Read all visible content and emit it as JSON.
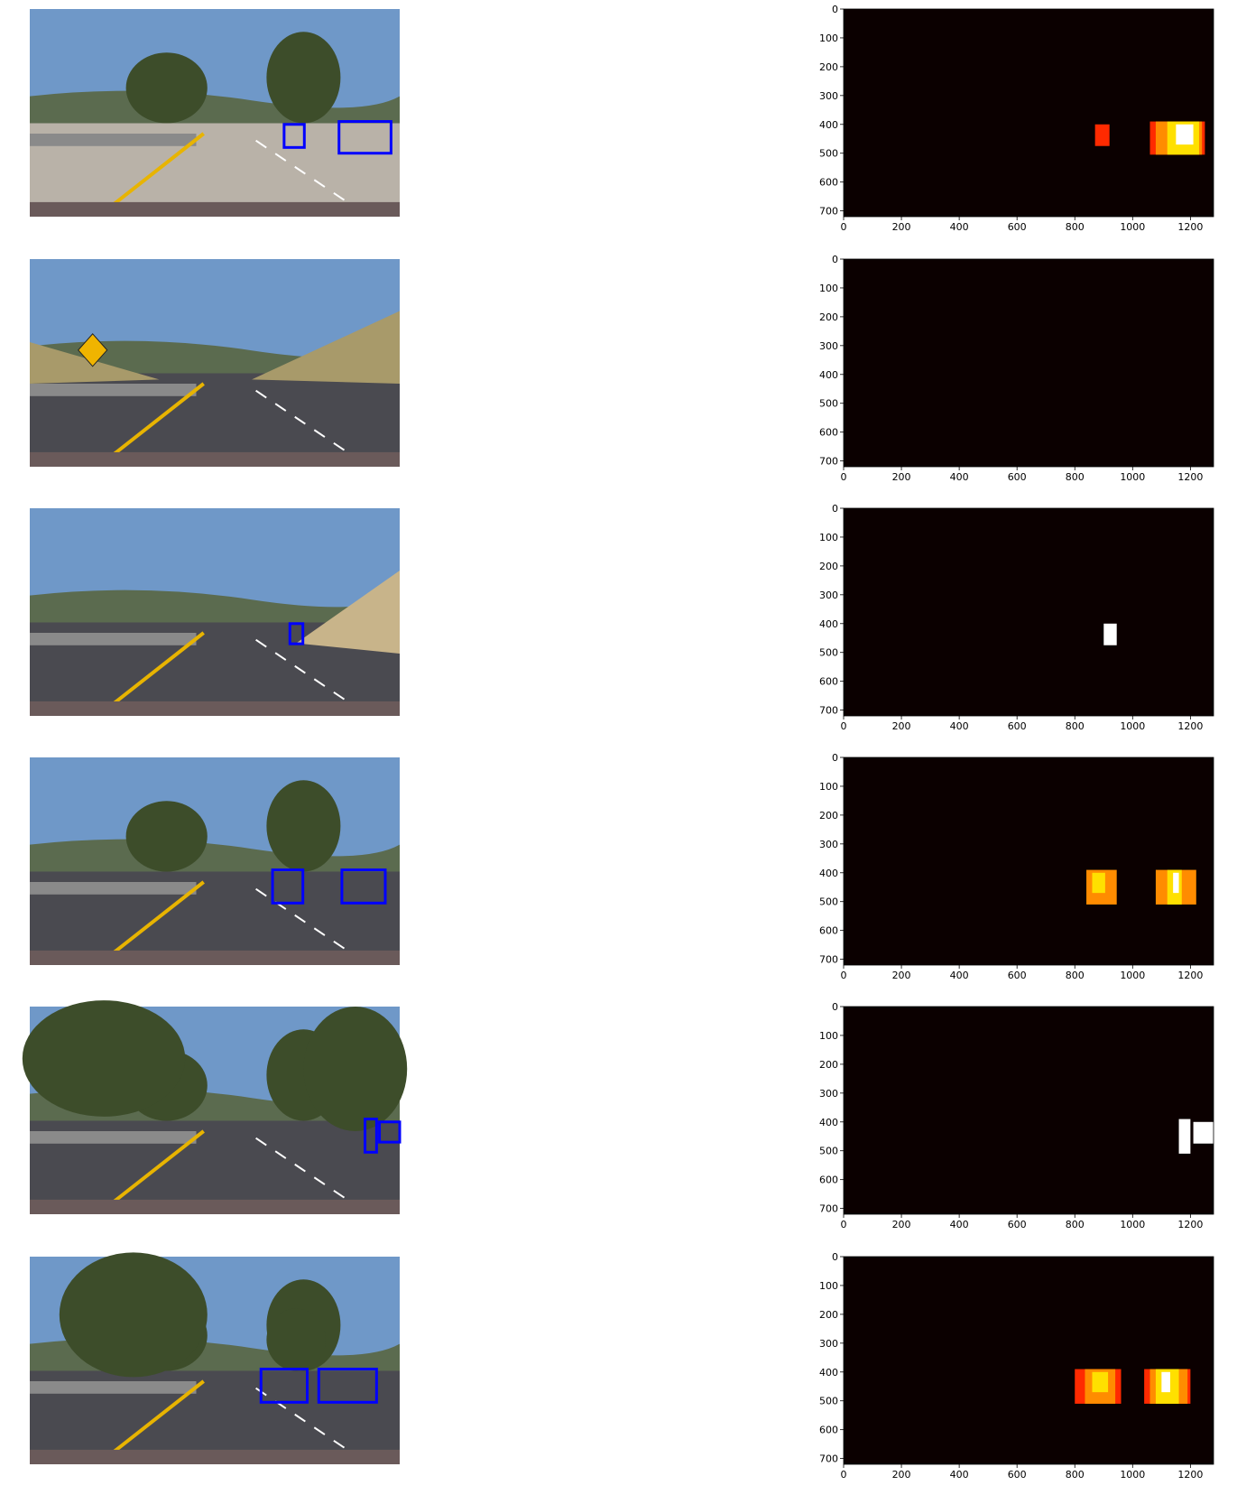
{
  "colors": {
    "heat_background": "#0b0000",
    "heat_low": "#ff2a00",
    "heat_mid": "#ff8c00",
    "heat_high": "#ffe000",
    "heat_max": "#ffffff",
    "box_color": "#0000ff",
    "sky": "#6f98c8",
    "road": "#4a4a50",
    "trees": "#3d4d2a",
    "lane_yellow": "#e8b400"
  },
  "chart_data": {
    "type": "heatmap",
    "rows": [
      {
        "scene": "road with two cars, trees",
        "boxes": [
          {
            "x0": 880,
            "x1": 950,
            "y0": 400,
            "y1": 480
          },
          {
            "x0": 1070,
            "x1": 1250,
            "y0": 390,
            "y1": 500
          }
        ],
        "heatmap": {
          "xlim": [
            0,
            1280
          ],
          "ylim": [
            720,
            0
          ],
          "xticks": [
            0,
            200,
            400,
            600,
            800,
            1000,
            1200
          ],
          "yticks": [
            0,
            100,
            200,
            300,
            400,
            500,
            600,
            700
          ],
          "cells": [
            {
              "x0": 870,
              "x1": 920,
              "y0": 400,
              "y1": 475,
              "level": 1
            },
            {
              "x0": 1060,
              "x1": 1250,
              "y0": 390,
              "y1": 505,
              "level": 1
            },
            {
              "x0": 1080,
              "x1": 1240,
              "y0": 390,
              "y1": 505,
              "level": 2
            },
            {
              "x0": 1120,
              "x1": 1230,
              "y0": 390,
              "y1": 505,
              "level": 3
            },
            {
              "x0": 1150,
              "x1": 1210,
              "y0": 400,
              "y1": 470,
              "level": 4
            }
          ]
        }
      },
      {
        "scene": "empty road, deer crossing sign",
        "boxes": [],
        "heatmap": {
          "xlim": [
            0,
            1280
          ],
          "ylim": [
            720,
            0
          ],
          "xticks": [
            0,
            200,
            400,
            600,
            800,
            1000,
            1200
          ],
          "yticks": [
            0,
            100,
            200,
            300,
            400,
            500,
            600,
            700
          ],
          "cells": []
        }
      },
      {
        "scene": "road with distant car, hill",
        "boxes": [
          {
            "x0": 900,
            "x1": 945,
            "y0": 400,
            "y1": 470
          }
        ],
        "heatmap": {
          "xlim": [
            0,
            1280
          ],
          "ylim": [
            720,
            0
          ],
          "xticks": [
            0,
            200,
            400,
            600,
            800,
            1000,
            1200
          ],
          "yticks": [
            0,
            100,
            200,
            300,
            400,
            500,
            600,
            700
          ],
          "cells": [
            {
              "x0": 900,
              "x1": 945,
              "y0": 400,
              "y1": 475,
              "level": 4
            }
          ]
        }
      },
      {
        "scene": "road with two cars, trees",
        "boxes": [
          {
            "x0": 840,
            "x1": 945,
            "y0": 390,
            "y1": 505
          },
          {
            "x0": 1080,
            "x1": 1230,
            "y0": 390,
            "y1": 505
          }
        ],
        "heatmap": {
          "xlim": [
            0,
            1280
          ],
          "ylim": [
            720,
            0
          ],
          "xticks": [
            0,
            200,
            400,
            600,
            800,
            1000,
            1200
          ],
          "yticks": [
            0,
            100,
            200,
            300,
            400,
            500,
            600,
            700
          ],
          "cells": [
            {
              "x0": 840,
              "x1": 945,
              "y0": 390,
              "y1": 510,
              "level": 2
            },
            {
              "x0": 860,
              "x1": 905,
              "y0": 400,
              "y1": 470,
              "level": 3
            },
            {
              "x0": 1080,
              "x1": 1220,
              "y0": 390,
              "y1": 510,
              "level": 2
            },
            {
              "x0": 1120,
              "x1": 1170,
              "y0": 390,
              "y1": 510,
              "level": 3
            },
            {
              "x0": 1140,
              "x1": 1160,
              "y0": 400,
              "y1": 470,
              "level": 4
            }
          ]
        }
      },
      {
        "scene": "road with car at right edge, trees",
        "boxes": [
          {
            "x0": 1160,
            "x1": 1200,
            "y0": 390,
            "y1": 505
          },
          {
            "x0": 1210,
            "x1": 1280,
            "y0": 400,
            "y1": 470
          }
        ],
        "heatmap": {
          "xlim": [
            0,
            1280
          ],
          "ylim": [
            720,
            0
          ],
          "xticks": [
            0,
            200,
            400,
            600,
            800,
            1000,
            1200
          ],
          "yticks": [
            0,
            100,
            200,
            300,
            400,
            500,
            600,
            700
          ],
          "cells": [
            {
              "x0": 1160,
              "x1": 1200,
              "y0": 390,
              "y1": 510,
              "level": 4
            },
            {
              "x0": 1210,
              "x1": 1280,
              "y0": 400,
              "y1": 475,
              "level": 4
            }
          ]
        }
      },
      {
        "scene": "road with two cars, trees",
        "boxes": [
          {
            "x0": 800,
            "x1": 960,
            "y0": 390,
            "y1": 505
          },
          {
            "x0": 1000,
            "x1": 1200,
            "y0": 390,
            "y1": 505
          }
        ],
        "heatmap": {
          "xlim": [
            0,
            1280
          ],
          "ylim": [
            720,
            0
          ],
          "xticks": [
            0,
            200,
            400,
            600,
            800,
            1000,
            1200
          ],
          "yticks": [
            0,
            100,
            200,
            300,
            400,
            500,
            600,
            700
          ],
          "cells": [
            {
              "x0": 800,
              "x1": 960,
              "y0": 390,
              "y1": 510,
              "level": 1
            },
            {
              "x0": 835,
              "x1": 940,
              "y0": 390,
              "y1": 510,
              "level": 2
            },
            {
              "x0": 860,
              "x1": 915,
              "y0": 400,
              "y1": 470,
              "level": 3
            },
            {
              "x0": 1040,
              "x1": 1200,
              "y0": 390,
              "y1": 510,
              "level": 1
            },
            {
              "x0": 1060,
              "x1": 1190,
              "y0": 390,
              "y1": 510,
              "level": 2
            },
            {
              "x0": 1080,
              "x1": 1160,
              "y0": 390,
              "y1": 510,
              "level": 3
            },
            {
              "x0": 1100,
              "x1": 1130,
              "y0": 400,
              "y1": 470,
              "level": 4
            }
          ]
        }
      }
    ]
  }
}
